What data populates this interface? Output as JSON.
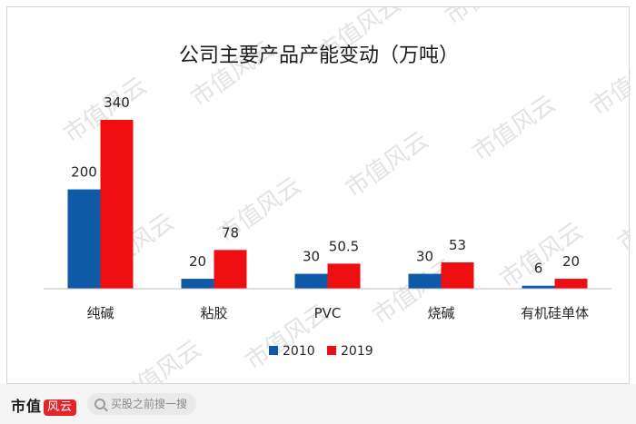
{
  "chart_data": {
    "type": "bar",
    "title": "公司主要产品产能变动（万吨）",
    "categories": [
      "纯碱",
      "粘胶",
      "PVC",
      "烧碱",
      "有机硅单体"
    ],
    "series": [
      {
        "name": "2010",
        "values": [
          200,
          20,
          30,
          30,
          6
        ],
        "labels": [
          "200",
          "20",
          "30",
          "30",
          "6"
        ],
        "color": "#0e5aa7"
      },
      {
        "name": "2019",
        "values": [
          340,
          78,
          50.5,
          53,
          20
        ],
        "labels": [
          "340",
          "78",
          "50.5",
          "53",
          "20"
        ],
        "color": "#ee0d11"
      }
    ],
    "ylim": [
      0,
      340
    ],
    "grid": false,
    "legend": "bottom-center"
  },
  "watermark_text": "市值风云",
  "footer": {
    "brand_text": "市值",
    "brand_mark_text": "风云",
    "search_placeholder": "买股之前搜一搜"
  }
}
